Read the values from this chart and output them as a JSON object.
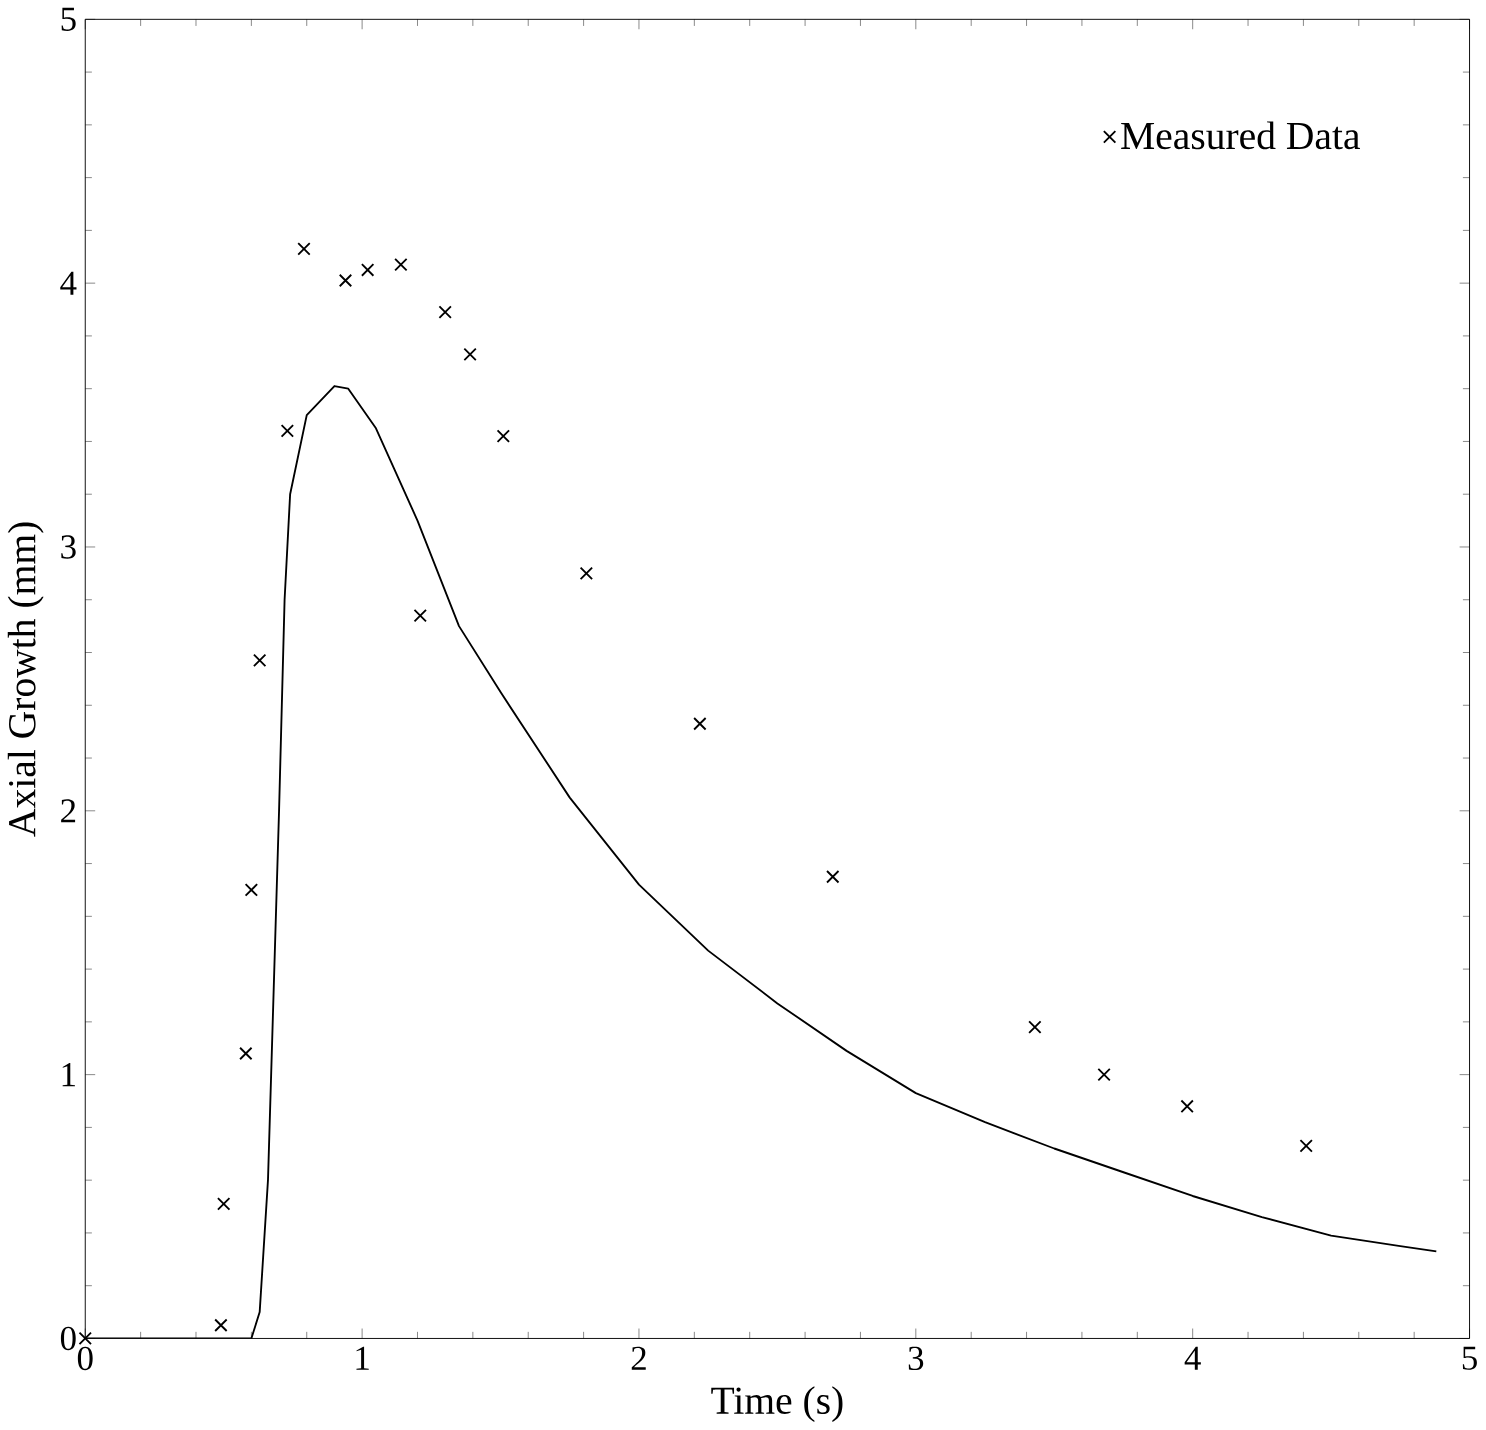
{
  "chart_data": {
    "type": "line",
    "xlabel": "Time (s)",
    "ylabel": "Axial Growth (mm)",
    "xlim": [
      0,
      5
    ],
    "ylim": [
      0,
      5
    ],
    "xticks": [
      0,
      1,
      2,
      3,
      4,
      5
    ],
    "yticks": [
      0,
      1,
      2,
      3,
      4,
      5
    ],
    "legend": "top right",
    "series": [
      {
        "type": "line",
        "color": "#000000",
        "line_style": "solid",
        "marker": "none",
        "x": [
          0,
          0.6,
          0.63,
          0.66,
          0.7,
          0.72,
          0.74,
          0.8,
          0.9,
          0.95,
          1.05,
          1.2,
          1.35,
          1.5,
          1.75,
          2.0,
          2.25,
          2.5,
          2.75,
          3.0,
          3.25,
          3.5,
          3.75,
          4.0,
          4.25,
          4.5,
          4.75,
          4.88
        ],
        "values": [
          0,
          0,
          0.1,
          0.6,
          2.0,
          2.8,
          3.2,
          3.5,
          3.61,
          3.6,
          3.45,
          3.1,
          2.7,
          2.45,
          2.05,
          1.72,
          1.47,
          1.27,
          1.09,
          0.93,
          0.82,
          0.72,
          0.63,
          0.54,
          0.46,
          0.39,
          0.35,
          0.33
        ]
      },
      {
        "type": "scatter",
        "name": "Measured Data",
        "color": "#000000",
        "marker": "cross",
        "x": [
          0,
          0.49,
          0.5,
          0.58,
          0.6,
          0.63,
          0.73,
          0.79,
          0.94,
          1.02,
          1.14,
          1.21,
          1.3,
          1.39,
          1.51,
          1.81,
          2.22,
          2.7,
          3.43,
          3.68,
          3.98,
          4.41
        ],
        "values": [
          0,
          0.05,
          0.51,
          1.08,
          1.7,
          2.57,
          3.44,
          4.13,
          4.01,
          4.05,
          4.07,
          2.74,
          3.89,
          3.73,
          3.42,
          2.9,
          2.33,
          1.75,
          1.18,
          1.0,
          0.88,
          0.73
        ]
      }
    ]
  }
}
